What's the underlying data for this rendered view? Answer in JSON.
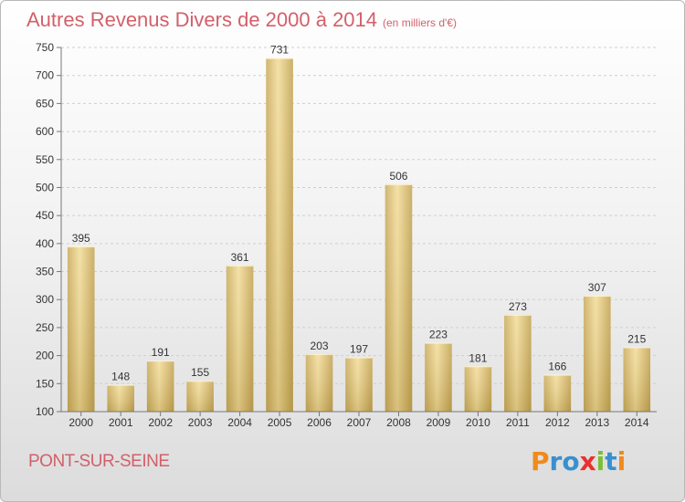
{
  "title": "Autres Revenus Divers de 2000 à 2014",
  "subtitle": "(en milliers d'€)",
  "location": "PONT-SUR-SEINE",
  "logo": {
    "text": "Proxiti",
    "letters": [
      {
        "ch": "P",
        "color": "#f08a1c"
      },
      {
        "ch": "r",
        "color": "#3a8fd0"
      },
      {
        "ch": "o",
        "color": "#3a8fd0"
      },
      {
        "ch": "x",
        "color": "#e8312f"
      },
      {
        "ch": "i",
        "color": "#7bbf35"
      },
      {
        "ch": "t",
        "color": "#3a8fd0"
      },
      {
        "ch": "i",
        "color": "#f08a1c"
      }
    ]
  },
  "chart_data": {
    "type": "bar",
    "categories": [
      "2000",
      "2001",
      "2002",
      "2003",
      "2004",
      "2005",
      "2006",
      "2007",
      "2008",
      "2009",
      "2010",
      "2011",
      "2012",
      "2013",
      "2014"
    ],
    "values": [
      395,
      148,
      191,
      155,
      361,
      731,
      203,
      197,
      506,
      223,
      181,
      273,
      166,
      307,
      215
    ],
    "title": "Autres Revenus Divers de 2000 à 2014",
    "xlabel": "",
    "ylabel": "",
    "ylim": [
      100,
      750
    ],
    "yticks": [
      100,
      150,
      200,
      250,
      300,
      350,
      400,
      450,
      500,
      550,
      600,
      650,
      700,
      750
    ],
    "grid": true,
    "bar_color": "#e6cf86"
  }
}
